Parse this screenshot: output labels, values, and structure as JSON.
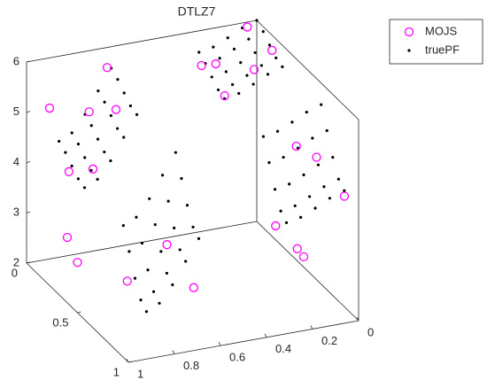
{
  "chart_data": {
    "type": "scatter3d",
    "title": "DTLZ7",
    "xlim": [
      0,
      1
    ],
    "ylim": [
      0,
      1
    ],
    "zlim": [
      2,
      6
    ],
    "xticks": [
      0,
      0.2,
      0.4,
      0.6,
      0.8,
      1
    ],
    "yticks": [
      0,
      0.5,
      1
    ],
    "zticks": [
      2,
      3,
      4,
      5,
      6
    ],
    "legend": "top-right",
    "series": [
      {
        "name": "MOJS",
        "color": "#ff00ff",
        "marker": "circle",
        "x": [
          0.05,
          0.2,
          0.1,
          0.24,
          0,
          0.25,
          0.05,
          0.2,
          0,
          0.12,
          0.25,
          0.15,
          0.65,
          0.86,
          0.8,
          0.9,
          0.7,
          0.75,
          0.7,
          0.85,
          0.65,
          1,
          1
        ],
        "y": [
          0.02,
          0.05,
          0.2,
          0,
          0.15,
          0.25,
          0.7,
          0.85,
          0.86,
          0.66,
          0.75,
          0.8,
          0,
          0.1,
          0.2,
          0,
          0.2,
          0.05,
          0.7,
          0.65,
          0.85,
          0.4,
          0.5
        ],
        "z": [
          5.95,
          5.4,
          5.5,
          5.3,
          5.7,
          5.2,
          4.7,
          3.3,
          4.2,
          4.9,
          3.6,
          3.0,
          5.6,
          3.9,
          4.1,
          5.0,
          5.2,
          4.9,
          3.5,
          2.8,
          2.9,
          3.3,
          3.0
        ]
      },
      {
        "name": "truePF",
        "color": "#000000",
        "marker": "dot",
        "x": [
          0,
          0,
          0,
          0,
          0,
          0.063,
          0.063,
          0.063,
          0.063,
          0.063,
          0.126,
          0.126,
          0.126,
          0.126,
          0.126,
          0.189,
          0.189,
          0.189,
          0.189,
          0.189,
          0.251,
          0.251,
          0.251,
          0.251,
          0.251,
          0,
          0,
          0,
          0,
          0,
          0.063,
          0.063,
          0.063,
          0.063,
          0.063,
          0.126,
          0.126,
          0.126,
          0.126,
          0.126,
          0.189,
          0.189,
          0.189,
          0.189,
          0.189,
          0.251,
          0.251,
          0.251,
          0.251,
          0.251,
          0.632,
          0.632,
          0.632,
          0.632,
          0.632,
          0.689,
          0.689,
          0.689,
          0.689,
          0.689,
          0.746,
          0.746,
          0.746,
          0.746,
          0.746,
          0.803,
          0.803,
          0.803,
          0.803,
          0.803,
          0.859,
          0.859,
          0.859,
          0.859,
          0.859,
          0.632,
          0.632,
          0.632,
          0.632,
          0.632,
          0.689,
          0.689,
          0.689,
          0.689,
          0.689,
          0.746,
          0.746,
          0.746,
          0.746,
          0.746,
          0.803,
          0.803,
          0.803,
          0.803,
          0.803,
          0.859,
          0.859,
          0.859,
          0.859,
          0.859
        ],
        "y": [
          0,
          0.063,
          0.126,
          0.189,
          0.251,
          0,
          0.063,
          0.126,
          0.189,
          0.251,
          0,
          0.063,
          0.126,
          0.189,
          0.251,
          0,
          0.063,
          0.126,
          0.189,
          0.251,
          0,
          0.063,
          0.126,
          0.189,
          0.251,
          0.632,
          0.689,
          0.746,
          0.803,
          0.859,
          0.632,
          0.689,
          0.746,
          0.803,
          0.859,
          0.632,
          0.689,
          0.746,
          0.803,
          0.859,
          0.632,
          0.689,
          0.746,
          0.803,
          0.859,
          0.632,
          0.689,
          0.746,
          0.803,
          0.859,
          0,
          0.063,
          0.126,
          0.189,
          0.251,
          0,
          0.063,
          0.126,
          0.189,
          0.251,
          0,
          0.063,
          0.126,
          0.189,
          0.251,
          0,
          0.063,
          0.126,
          0.189,
          0.251,
          0,
          0.063,
          0.126,
          0.189,
          0.251,
          0.632,
          0.689,
          0.746,
          0.803,
          0.859,
          0.632,
          0.689,
          0.746,
          0.803,
          0.859,
          0.632,
          0.689,
          0.746,
          0.803,
          0.859,
          0.632,
          0.689,
          0.746,
          0.803,
          0.859,
          0.632,
          0.689,
          0.746,
          0.803,
          0.859
        ],
        "z": [
          6,
          5.902,
          5.757,
          5.626,
          5.573,
          5.902,
          5.804,
          5.659,
          5.528,
          5.475,
          5.757,
          5.659,
          5.514,
          5.383,
          5.33,
          5.626,
          5.528,
          5.383,
          5.252,
          5.199,
          5.573,
          5.475,
          5.33,
          5.199,
          5.146,
          5.571,
          5.167,
          4.747,
          4.427,
          4.307,
          5.473,
          5.069,
          4.649,
          4.329,
          4.209,
          5.328,
          4.924,
          4.504,
          4.184,
          4.064,
          5.197,
          4.793,
          4.373,
          4.053,
          3.933,
          5.144,
          4.74,
          4.32,
          4,
          3.88,
          5.571,
          5.473,
          5.328,
          5.197,
          5.144,
          5.167,
          5.069,
          4.924,
          4.793,
          4.74,
          4.747,
          4.649,
          4.504,
          4.373,
          4.32,
          4.427,
          4.329,
          4.184,
          4.053,
          4,
          4.307,
          4.209,
          4.064,
          3.933,
          3.88,
          5.142,
          4.738,
          4.318,
          3.997,
          3.878,
          4.738,
          4.334,
          3.914,
          3.593,
          3.474,
          4.318,
          3.914,
          3.494,
          3.173,
          3.054,
          3.997,
          3.593,
          3.173,
          2.853,
          2.734,
          3.878,
          3.474,
          3.054,
          2.734,
          2.614
        ]
      }
    ]
  }
}
